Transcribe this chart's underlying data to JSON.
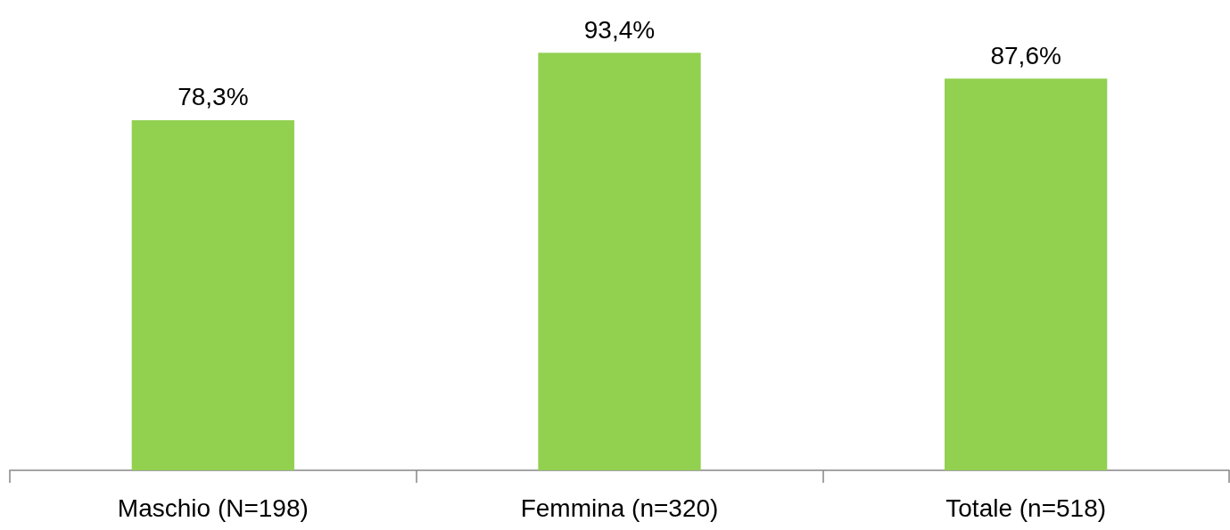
{
  "chart_data": {
    "type": "bar",
    "categories": [
      "Maschio (N=198)",
      "Femmina (n=320)",
      "Totale (n=518)"
    ],
    "values": [
      78.3,
      93.4,
      87.6
    ],
    "color": "#92d050",
    "value_labels": [
      "78,3%",
      "93,4%",
      "87,6%"
    ],
    "tick_labels": "x",
    "grid": false
  }
}
